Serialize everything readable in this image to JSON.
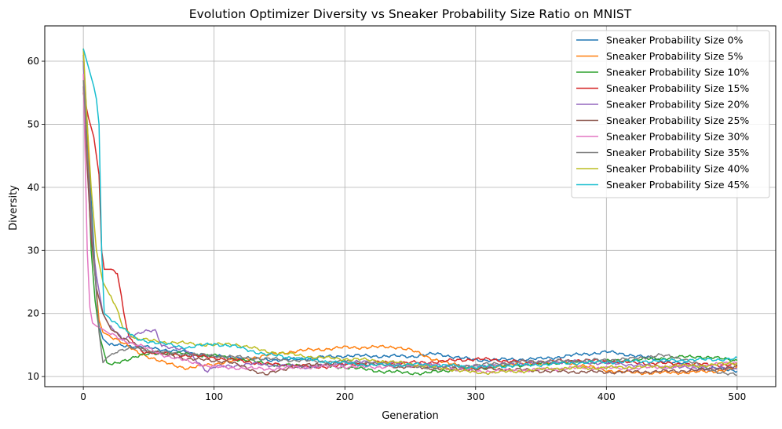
{
  "chart_data": {
    "type": "line",
    "title": "Evolution Optimizer Diversity vs Sneaker Probability Size Ratio on MNIST",
    "xlabel": "Generation",
    "ylabel": "Diversity",
    "xlim": [
      -29.5,
      529.5
    ],
    "ylim": [
      8.4,
      65.6
    ],
    "xticks": [
      0,
      100,
      200,
      300,
      400,
      500
    ],
    "yticks": [
      10,
      20,
      30,
      40,
      50,
      60
    ],
    "grid": true,
    "legend_position": "top-right",
    "series": [
      {
        "name": "Sneaker Probability Size 0%",
        "color": "#1f77b4",
        "points": [
          [
            0,
            61
          ],
          [
            3,
            50
          ],
          [
            6,
            38
          ],
          [
            9,
            27
          ],
          [
            12,
            18
          ],
          [
            15,
            16
          ],
          [
            20,
            15
          ],
          [
            30,
            15
          ],
          [
            50,
            14.6
          ],
          [
            100,
            13.2
          ],
          [
            150,
            12.6
          ],
          [
            200,
            13.3
          ],
          [
            250,
            13.2
          ],
          [
            270,
            13.6
          ],
          [
            300,
            12.6
          ],
          [
            350,
            12.8
          ],
          [
            380,
            13.5
          ],
          [
            400,
            13.9
          ],
          [
            420,
            13.4
          ],
          [
            450,
            12.3
          ],
          [
            480,
            11.3
          ],
          [
            500,
            11
          ]
        ]
      },
      {
        "name": "Sneaker Probability Size 5%",
        "color": "#ff7f0e",
        "points": [
          [
            0,
            62
          ],
          [
            3,
            48
          ],
          [
            6,
            35
          ],
          [
            9,
            26
          ],
          [
            12,
            19
          ],
          [
            15,
            17
          ],
          [
            25,
            16
          ],
          [
            40,
            14
          ],
          [
            60,
            12.3
          ],
          [
            80,
            11.3
          ],
          [
            100,
            12
          ],
          [
            130,
            13
          ],
          [
            160,
            14
          ],
          [
            200,
            14.6
          ],
          [
            240,
            14.7
          ],
          [
            250,
            14.2
          ],
          [
            265,
            13
          ],
          [
            280,
            12
          ],
          [
            300,
            11.3
          ],
          [
            330,
            12
          ],
          [
            370,
            12.2
          ],
          [
            400,
            11
          ],
          [
            420,
            10.6
          ],
          [
            450,
            10.6
          ],
          [
            480,
            10.8
          ],
          [
            500,
            11.3
          ]
        ]
      },
      {
        "name": "Sneaker Probability Size 10%",
        "color": "#2ca02c",
        "points": [
          [
            0,
            60
          ],
          [
            3,
            46
          ],
          [
            6,
            30
          ],
          [
            9,
            22
          ],
          [
            13,
            16
          ],
          [
            18,
            12.2
          ],
          [
            22,
            11.8
          ],
          [
            30,
            12.5
          ],
          [
            40,
            13.2
          ],
          [
            60,
            13.8
          ],
          [
            100,
            13.3
          ],
          [
            150,
            11.8
          ],
          [
            200,
            11.5
          ],
          [
            230,
            10.8
          ],
          [
            260,
            10.5
          ],
          [
            290,
            11.3
          ],
          [
            320,
            11.6
          ],
          [
            360,
            12.2
          ],
          [
            400,
            12.4
          ],
          [
            450,
            13
          ],
          [
            470,
            13.2
          ],
          [
            500,
            12.6
          ]
        ]
      },
      {
        "name": "Sneaker Probability Size 15%",
        "color": "#d62728",
        "points": [
          [
            0,
            55
          ],
          [
            4,
            51
          ],
          [
            8,
            48
          ],
          [
            12,
            42
          ],
          [
            14,
            30
          ],
          [
            16,
            27
          ],
          [
            22,
            27
          ],
          [
            26,
            26.5
          ],
          [
            28,
            24
          ],
          [
            31,
            20
          ],
          [
            35,
            16
          ],
          [
            45,
            14
          ],
          [
            70,
            13.5
          ],
          [
            100,
            13
          ],
          [
            140,
            12
          ],
          [
            180,
            11.5
          ],
          [
            220,
            12.2
          ],
          [
            260,
            12.2
          ],
          [
            300,
            12.8
          ],
          [
            340,
            12.3
          ],
          [
            380,
            12.6
          ],
          [
            420,
            12.2
          ],
          [
            460,
            12
          ],
          [
            500,
            11.8
          ]
        ]
      },
      {
        "name": "Sneaker Probability Size 20%",
        "color": "#9467bd",
        "points": [
          [
            0,
            60
          ],
          [
            3,
            45
          ],
          [
            6,
            33
          ],
          [
            10,
            26
          ],
          [
            15,
            20
          ],
          [
            20,
            18
          ],
          [
            30,
            16
          ],
          [
            45,
            17
          ],
          [
            55,
            17.3
          ],
          [
            60,
            15
          ],
          [
            80,
            14
          ],
          [
            95,
            10.8
          ],
          [
            100,
            11.5
          ],
          [
            130,
            12
          ],
          [
            170,
            11.5
          ],
          [
            210,
            12.3
          ],
          [
            250,
            12
          ],
          [
            290,
            11.5
          ],
          [
            330,
            12
          ],
          [
            370,
            12.4
          ],
          [
            410,
            12
          ],
          [
            450,
            11.5
          ],
          [
            480,
            11.2
          ],
          [
            500,
            11.5
          ]
        ]
      },
      {
        "name": "Sneaker Probability Size 25%",
        "color": "#8c564b",
        "points": [
          [
            0,
            56
          ],
          [
            3,
            43
          ],
          [
            6,
            32
          ],
          [
            10,
            24
          ],
          [
            15,
            20
          ],
          [
            20,
            18
          ],
          [
            30,
            16
          ],
          [
            50,
            14
          ],
          [
            80,
            12.8
          ],
          [
            110,
            12.4
          ],
          [
            130,
            11
          ],
          [
            140,
            10.3
          ],
          [
            160,
            11.6
          ],
          [
            200,
            12.2
          ],
          [
            240,
            11.6
          ],
          [
            280,
            11.2
          ],
          [
            320,
            11.2
          ],
          [
            360,
            10.8
          ],
          [
            400,
            10.7
          ],
          [
            440,
            10.8
          ],
          [
            470,
            11
          ],
          [
            500,
            11.5
          ]
        ]
      },
      {
        "name": "Sneaker Probability Size 30%",
        "color": "#e377c2",
        "points": [
          [
            0,
            58
          ],
          [
            3,
            30
          ],
          [
            5,
            21
          ],
          [
            7,
            18.5
          ],
          [
            10,
            18
          ],
          [
            15,
            17.5
          ],
          [
            20,
            16.8
          ],
          [
            30,
            15.8
          ],
          [
            45,
            14.8
          ],
          [
            60,
            13.5
          ],
          [
            80,
            12.4
          ],
          [
            100,
            11.5
          ],
          [
            140,
            11.2
          ],
          [
            180,
            11.6
          ],
          [
            220,
            11.5
          ],
          [
            260,
            11.8
          ],
          [
            300,
            10.8
          ],
          [
            340,
            11
          ],
          [
            380,
            11.4
          ],
          [
            420,
            11.3
          ],
          [
            450,
            11.6
          ],
          [
            480,
            11.8
          ],
          [
            500,
            12.3
          ]
        ]
      },
      {
        "name": "Sneaker Probability Size 35%",
        "color": "#7f7f7f",
        "points": [
          [
            0,
            57
          ],
          [
            3,
            46
          ],
          [
            6,
            36
          ],
          [
            9,
            26
          ],
          [
            12,
            17
          ],
          [
            15,
            12.2
          ],
          [
            18,
            13
          ],
          [
            25,
            14
          ],
          [
            40,
            14.5
          ],
          [
            60,
            13.8
          ],
          [
            100,
            13.3
          ],
          [
            140,
            12.8
          ],
          [
            180,
            12.4
          ],
          [
            220,
            12.2
          ],
          [
            260,
            11.4
          ],
          [
            300,
            11.8
          ],
          [
            340,
            12.4
          ],
          [
            380,
            12.5
          ],
          [
            420,
            12.8
          ],
          [
            440,
            13.4
          ],
          [
            460,
            12.8
          ],
          [
            480,
            11
          ],
          [
            500,
            10.2
          ]
        ]
      },
      {
        "name": "Sneaker Probability Size 40%",
        "color": "#bcbd22",
        "points": [
          [
            0,
            62
          ],
          [
            3,
            50
          ],
          [
            6,
            40
          ],
          [
            10,
            30
          ],
          [
            15,
            25
          ],
          [
            20,
            23
          ],
          [
            25,
            21
          ],
          [
            30,
            18
          ],
          [
            40,
            16
          ],
          [
            60,
            15.5
          ],
          [
            100,
            15
          ],
          [
            115,
            15.2
          ],
          [
            140,
            14
          ],
          [
            180,
            13
          ],
          [
            220,
            12.6
          ],
          [
            250,
            12
          ],
          [
            280,
            11.2
          ],
          [
            300,
            10.6
          ],
          [
            330,
            10.8
          ],
          [
            360,
            11.3
          ],
          [
            400,
            11.4
          ],
          [
            440,
            11.6
          ],
          [
            480,
            11.8
          ],
          [
            500,
            12.2
          ]
        ]
      },
      {
        "name": "Sneaker Probability Size 45%",
        "color": "#17becf",
        "points": [
          [
            0,
            62
          ],
          [
            4,
            59
          ],
          [
            8,
            56
          ],
          [
            10,
            54
          ],
          [
            12,
            50
          ],
          [
            14,
            30
          ],
          [
            16,
            20
          ],
          [
            25,
            18.5
          ],
          [
            40,
            16
          ],
          [
            60,
            15.2
          ],
          [
            80,
            14.6
          ],
          [
            100,
            15.2
          ],
          [
            115,
            14.8
          ],
          [
            140,
            13.5
          ],
          [
            180,
            12.5
          ],
          [
            220,
            11.8
          ],
          [
            260,
            11.9
          ],
          [
            300,
            11.5
          ],
          [
            340,
            11.8
          ],
          [
            380,
            12.2
          ],
          [
            420,
            12.4
          ],
          [
            460,
            12.6
          ],
          [
            500,
            12.8
          ]
        ]
      }
    ]
  }
}
